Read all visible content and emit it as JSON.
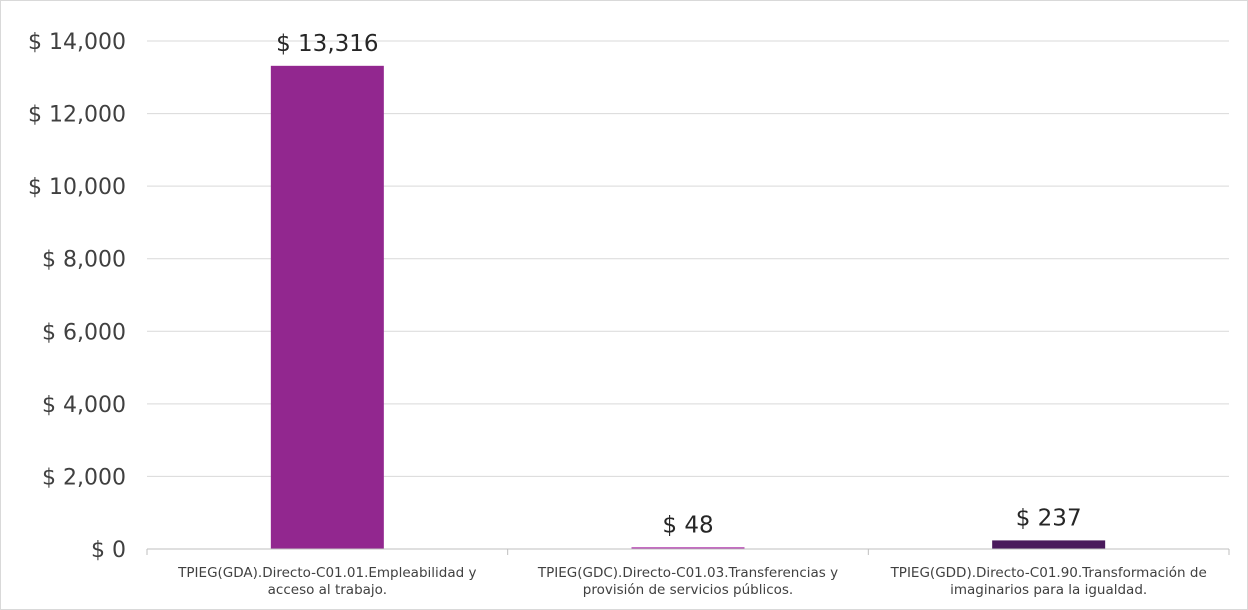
{
  "chart_data": {
    "type": "bar",
    "title": "",
    "xlabel": "",
    "ylabel": "",
    "ylim": [
      0,
      14000
    ],
    "yticks": [
      0,
      2000,
      4000,
      6000,
      8000,
      10000,
      12000,
      14000
    ],
    "ytick_labels": [
      "$ 0",
      "$ 2,000",
      "$ 4,000",
      "$ 6,000",
      "$ 8,000",
      "$ 10,000",
      "$ 12,000",
      "$ 14,000"
    ],
    "grid": true,
    "legend": "none",
    "categories": [
      [
        "TPIEG(GDA).Directo-C01.01.Empleabilidad y",
        "acceso al trabajo."
      ],
      [
        "TPIEG(GDC).Directo-C01.03.Transferencias y",
        "provisión de servicios públicos."
      ],
      [
        "TPIEG(GDD).Directo-C01.90.Transformación de",
        "imaginarios para la igualdad."
      ]
    ],
    "values": [
      13316,
      48,
      237
    ],
    "value_labels": [
      "$ 13,316",
      "$ 48",
      "$ 237"
    ],
    "colors": [
      "#92278f",
      "#b13bae",
      "#4a1a5c"
    ]
  }
}
